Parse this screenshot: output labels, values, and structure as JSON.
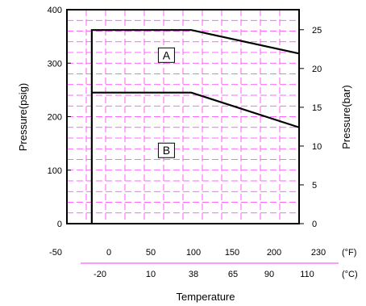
{
  "chart_data": {
    "type": "line",
    "xlabel": "Temperature",
    "ylabel": "Pressure(psig)",
    "ylabel_right": "Pressure(bar)",
    "fahrenheit_ticks": [
      "-50",
      "0",
      "50",
      "100",
      "150",
      "200",
      "230"
    ],
    "fahrenheit_unit": "(°F)",
    "celsius_ticks": [
      "-20",
      "10",
      "38",
      "65",
      "90",
      "110"
    ],
    "celsius_unit": "(°C)",
    "xlim_f": [
      -50,
      230
    ],
    "ylim_psig": [
      0,
      400
    ],
    "ylim_bar": [
      0,
      27.58
    ],
    "psig_ticks": [
      "0",
      "100",
      "200",
      "300",
      "400"
    ],
    "bar_ticks": [
      "0",
      "5",
      "10",
      "15",
      "20",
      "25"
    ],
    "grid": true,
    "grid_color": "#ff33ff",
    "line_color": "#000000",
    "series": [
      {
        "label": "A",
        "x": [
          -20,
          -20,
          100,
          230
        ],
        "y": [
          0,
          362,
          362,
          318
        ]
      },
      {
        "label": "B",
        "x": [
          -20,
          100,
          230
        ],
        "y": [
          245,
          245,
          180
        ]
      }
    ],
    "labels": [
      {
        "text": "A",
        "x": 70,
        "y": 315
      },
      {
        "text": "B",
        "x": 70,
        "y": 137
      }
    ]
  }
}
